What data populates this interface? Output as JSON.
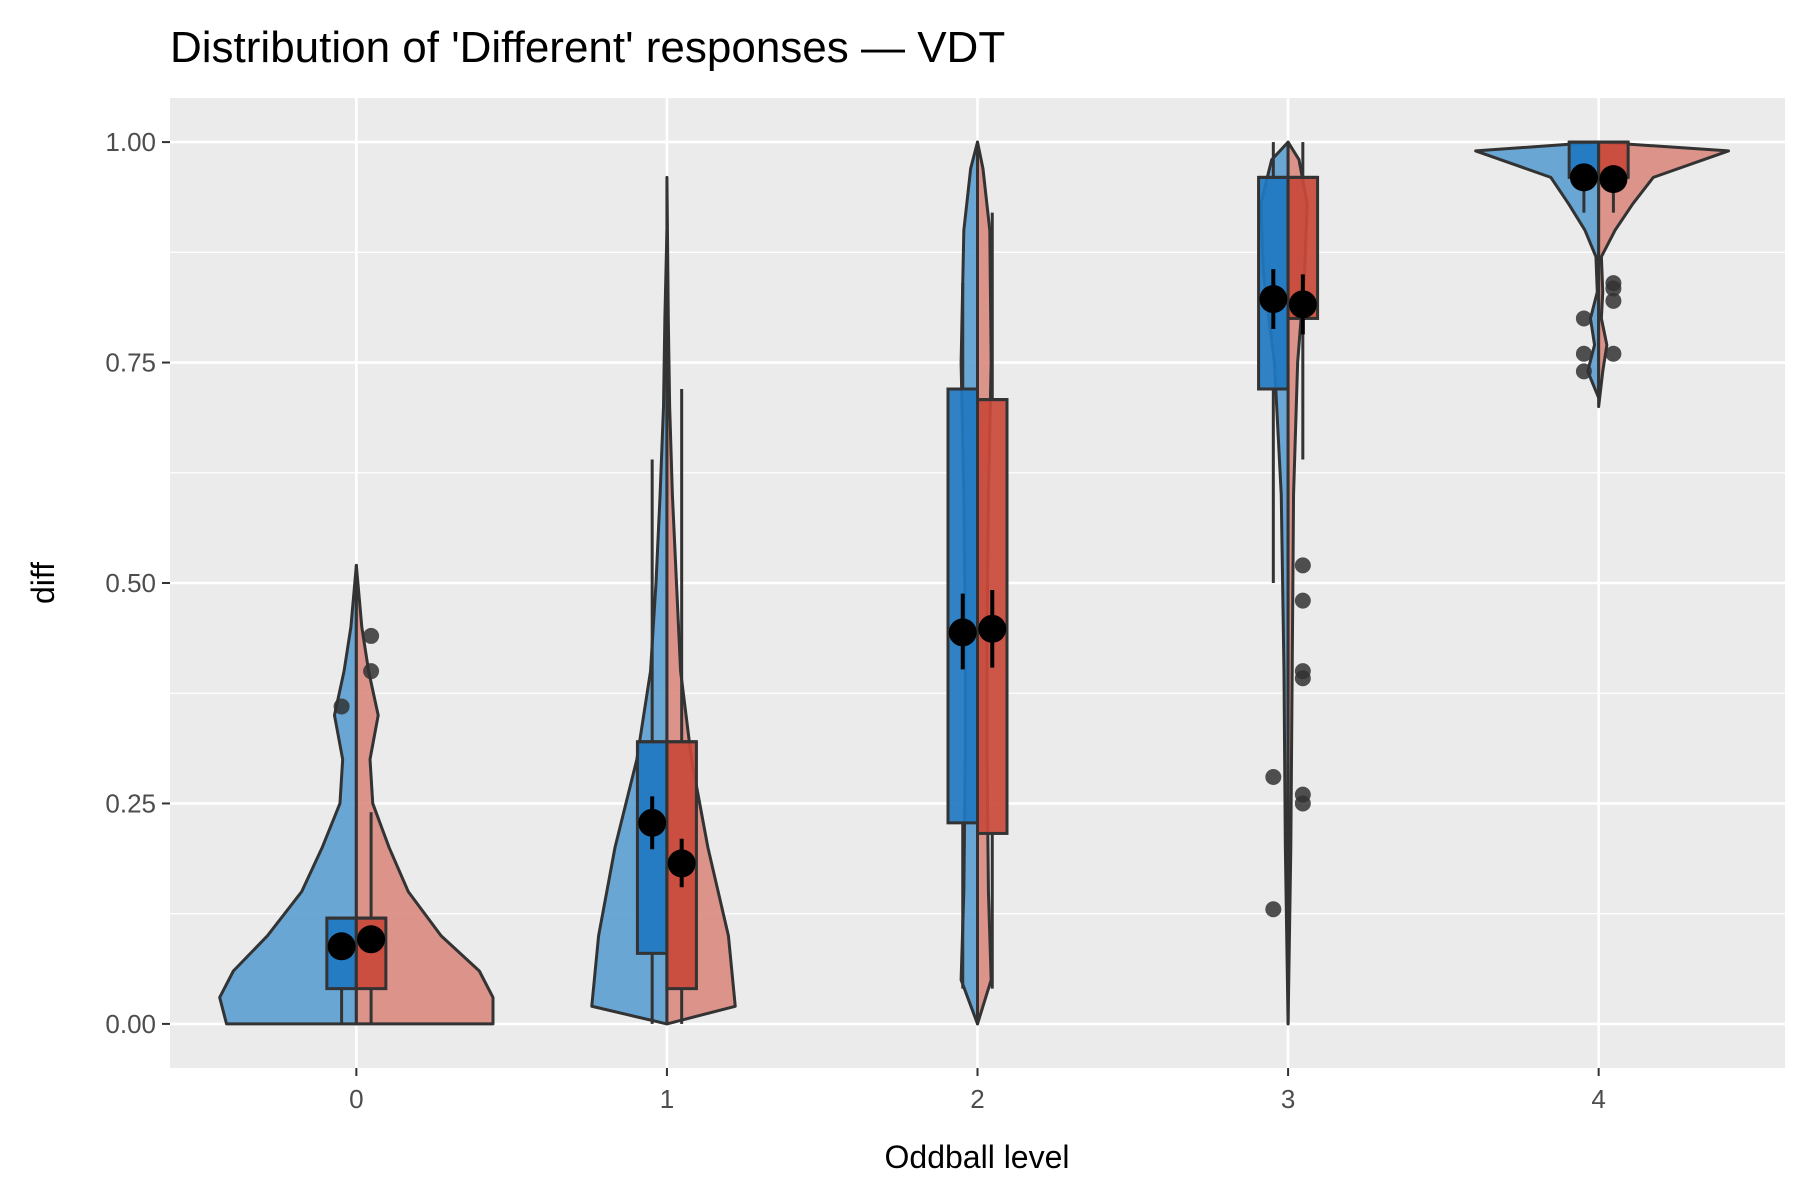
{
  "chart_data": {
    "type": "violin-box",
    "title": "Distribution of 'Different' responses — VDT",
    "xlabel": "Oddball level",
    "ylabel": "diff",
    "categories": [
      "0",
      "1",
      "2",
      "3",
      "4"
    ],
    "ylim": [
      -0.05,
      1.05
    ],
    "yticks": [
      0.0,
      0.25,
      0.5,
      0.75,
      1.0
    ],
    "ytick_labels": [
      "0.00",
      "0.25",
      "0.50",
      "0.75",
      "1.00"
    ],
    "grid": true,
    "legend": "none",
    "colors": {
      "left_box": "#1f78c1",
      "left_violin": "#5b9fd1",
      "right_box": "#c9493a",
      "right_violin": "#d98a80",
      "panel": "#ebebeb",
      "grid": "#ffffff",
      "outline": "#333333"
    },
    "groups": [
      {
        "category": "0",
        "left": {
          "box": {
            "q1": 0.04,
            "median": 0.12,
            "q3": 0.12,
            "whisker_low": 0.0,
            "whisker_high": 0.12
          },
          "mean": 0.088,
          "ci": [
            0.08,
            0.096
          ],
          "outliers": [
            0.36
          ],
          "violin": [
            [
              0.0,
              0.95
            ],
            [
              0.03,
              1.0
            ],
            [
              0.06,
              0.9
            ],
            [
              0.1,
              0.65
            ],
            [
              0.15,
              0.4
            ],
            [
              0.2,
              0.25
            ],
            [
              0.25,
              0.12
            ],
            [
              0.3,
              0.1
            ],
            [
              0.35,
              0.16
            ],
            [
              0.4,
              0.09
            ],
            [
              0.45,
              0.04
            ],
            [
              0.52,
              0.0
            ]
          ]
        },
        "right": {
          "box": {
            "q1": 0.04,
            "median": 0.12,
            "q3": 0.12,
            "whisker_low": 0.0,
            "whisker_high": 0.24
          },
          "mean": 0.096,
          "ci": [
            0.088,
            0.104
          ],
          "outliers": [
            0.44,
            0.4
          ],
          "violin": [
            [
              0.0,
              1.0
            ],
            [
              0.03,
              1.0
            ],
            [
              0.06,
              0.9
            ],
            [
              0.1,
              0.62
            ],
            [
              0.15,
              0.38
            ],
            [
              0.2,
              0.24
            ],
            [
              0.25,
              0.12
            ],
            [
              0.3,
              0.1
            ],
            [
              0.35,
              0.16
            ],
            [
              0.4,
              0.09
            ],
            [
              0.45,
              0.04
            ],
            [
              0.52,
              0.0
            ]
          ]
        }
      },
      {
        "category": "1",
        "left": {
          "box": {
            "q1": 0.08,
            "median": 0.32,
            "q3": 0.32,
            "whisker_low": 0.0,
            "whisker_high": 0.64
          },
          "mean": 0.228,
          "ci": [
            0.198,
            0.258
          ],
          "outliers": [],
          "violin": [
            [
              0.0,
              0.0
            ],
            [
              0.02,
              0.55
            ],
            [
              0.1,
              0.5
            ],
            [
              0.2,
              0.38
            ],
            [
              0.3,
              0.22
            ],
            [
              0.4,
              0.12
            ],
            [
              0.5,
              0.08
            ],
            [
              0.6,
              0.05
            ],
            [
              0.7,
              0.025
            ],
            [
              0.8,
              0.015
            ],
            [
              0.9,
              0.0
            ]
          ]
        },
        "right": {
          "box": {
            "q1": 0.04,
            "median": 0.32,
            "q3": 0.32,
            "whisker_low": 0.0,
            "whisker_high": 0.72
          },
          "mean": 0.182,
          "ci": [
            0.155,
            0.21
          ],
          "outliers": [],
          "violin": [
            [
              0.0,
              0.0
            ],
            [
              0.02,
              0.5
            ],
            [
              0.1,
              0.45
            ],
            [
              0.2,
              0.3
            ],
            [
              0.3,
              0.18
            ],
            [
              0.4,
              0.1
            ],
            [
              0.5,
              0.07
            ],
            [
              0.6,
              0.04
            ],
            [
              0.7,
              0.02
            ],
            [
              0.8,
              0.01
            ],
            [
              0.96,
              0.0
            ]
          ]
        }
      },
      {
        "category": "2",
        "left": {
          "box": {
            "q1": 0.228,
            "median": 0.72,
            "q3": 0.72,
            "whisker_low": 0.04,
            "whisker_high": 0.84
          },
          "mean": 0.444,
          "ci": [
            0.402,
            0.488
          ],
          "outliers": [],
          "violin": [
            [
              0.0,
              0.0
            ],
            [
              0.05,
              0.12
            ],
            [
              0.15,
              0.1
            ],
            [
              0.3,
              0.09
            ],
            [
              0.45,
              0.09
            ],
            [
              0.6,
              0.1
            ],
            [
              0.75,
              0.12
            ],
            [
              0.9,
              0.1
            ],
            [
              0.97,
              0.05
            ],
            [
              1.0,
              0.0
            ]
          ]
        },
        "right": {
          "box": {
            "q1": 0.216,
            "median": 0.708,
            "q3": 0.708,
            "whisker_low": 0.04,
            "whisker_high": 0.92
          },
          "mean": 0.448,
          "ci": [
            0.404,
            0.492
          ],
          "outliers": [],
          "violin": [
            [
              0.0,
              0.0
            ],
            [
              0.05,
              0.1
            ],
            [
              0.15,
              0.08
            ],
            [
              0.3,
              0.07
            ],
            [
              0.45,
              0.07
            ],
            [
              0.6,
              0.08
            ],
            [
              0.75,
              0.1
            ],
            [
              0.9,
              0.09
            ],
            [
              0.97,
              0.04
            ],
            [
              1.0,
              0.0
            ]
          ]
        }
      },
      {
        "category": "3",
        "left": {
          "box": {
            "q1": 0.72,
            "median": 0.96,
            "q3": 0.96,
            "whisker_low": 0.5,
            "whisker_high": 1.0
          },
          "mean": 0.822,
          "ci": [
            0.788,
            0.856
          ],
          "outliers": [
            0.28,
            0.13
          ],
          "violin": [
            [
              0.0,
              0.0
            ],
            [
              0.2,
              0.02
            ],
            [
              0.4,
              0.03
            ],
            [
              0.6,
              0.05
            ],
            [
              0.75,
              0.1
            ],
            [
              0.85,
              0.18
            ],
            [
              0.93,
              0.2
            ],
            [
              0.98,
              0.12
            ],
            [
              1.0,
              0.0
            ]
          ]
        },
        "right": {
          "box": {
            "q1": 0.8,
            "median": 0.96,
            "q3": 0.96,
            "whisker_low": 0.64,
            "whisker_high": 1.0
          },
          "mean": 0.816,
          "ci": [
            0.782,
            0.85
          ],
          "outliers": [
            0.52,
            0.48,
            0.4,
            0.392,
            0.26,
            0.25
          ],
          "violin": [
            [
              0.0,
              0.0
            ],
            [
              0.2,
              0.02
            ],
            [
              0.4,
              0.03
            ],
            [
              0.6,
              0.04
            ],
            [
              0.75,
              0.07
            ],
            [
              0.85,
              0.12
            ],
            [
              0.93,
              0.14
            ],
            [
              0.98,
              0.08
            ],
            [
              1.0,
              0.0
            ]
          ]
        }
      },
      {
        "category": "4",
        "left": {
          "box": {
            "q1": 0.96,
            "median": 1.0,
            "q3": 1.0,
            "whisker_low": 0.92,
            "whisker_high": 1.0
          },
          "mean": 0.96,
          "ci": [
            0.952,
            0.968
          ],
          "outliers": [
            0.8,
            0.76,
            0.74
          ],
          "violin": [
            [
              0.71,
              0.0
            ],
            [
              0.74,
              0.08
            ],
            [
              0.77,
              0.03
            ],
            [
              0.8,
              0.06
            ],
            [
              0.83,
              0.01
            ],
            [
              0.87,
              0.02
            ],
            [
              0.9,
              0.1
            ],
            [
              0.93,
              0.22
            ],
            [
              0.96,
              0.35
            ],
            [
              0.99,
              0.9
            ],
            [
              1.0,
              0.0
            ]
          ]
        },
        "right": {
          "box": {
            "q1": 0.96,
            "median": 1.0,
            "q3": 1.0,
            "whisker_low": 0.92,
            "whisker_high": 1.0
          },
          "mean": 0.958,
          "ci": [
            0.95,
            0.966
          ],
          "outliers": [
            0.84,
            0.834,
            0.82,
            0.76
          ],
          "violin": [
            [
              0.7,
              0.0
            ],
            [
              0.74,
              0.03
            ],
            [
              0.77,
              0.06
            ],
            [
              0.8,
              0.02
            ],
            [
              0.83,
              0.03
            ],
            [
              0.87,
              0.02
            ],
            [
              0.9,
              0.12
            ],
            [
              0.93,
              0.25
            ],
            [
              0.96,
              0.4
            ],
            [
              0.99,
              0.95
            ],
            [
              1.0,
              0.0
            ]
          ]
        }
      }
    ]
  }
}
